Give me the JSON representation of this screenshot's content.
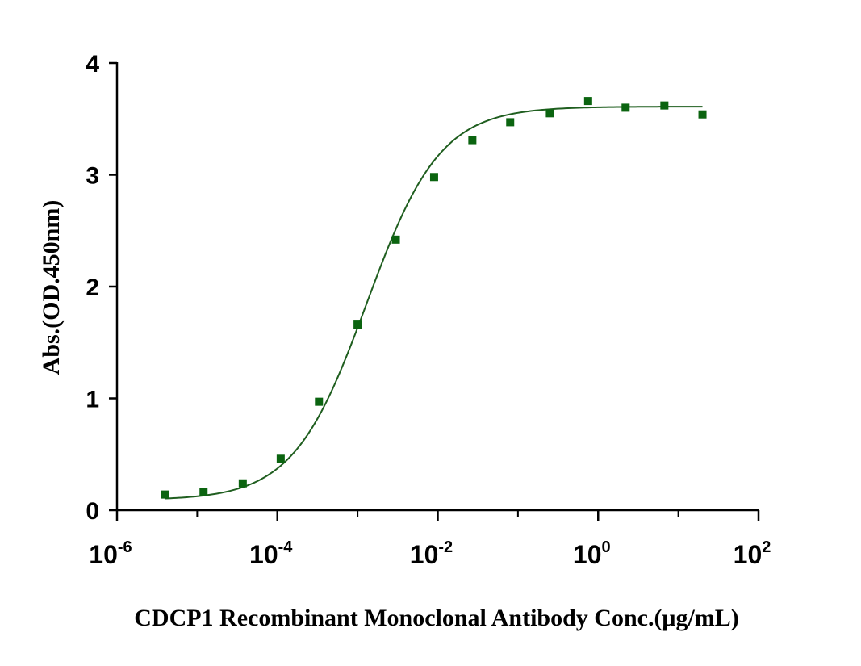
{
  "chart_data": {
    "type": "scatter",
    "title": "",
    "xlabel": "CDCP1 Recombinant Monoclonal Antibody Conc.(μg/mL)",
    "ylabel": "Abs.(OD.450nm)",
    "xscale": "log10",
    "xlim": [
      1e-06,
      100
    ],
    "ylim": [
      0,
      4
    ],
    "x_ticks": [
      {
        "base": "10",
        "exp": "-6",
        "value": 1e-06
      },
      {
        "base": "10",
        "exp": "-4",
        "value": 0.0001
      },
      {
        "base": "10",
        "exp": "-2",
        "value": 0.01
      },
      {
        "base": "10",
        "exp": "0",
        "value": 1
      },
      {
        "base": "10",
        "exp": "2",
        "value": 100
      }
    ],
    "y_ticks": [
      "0",
      "1",
      "2",
      "3",
      "4"
    ],
    "grid": false,
    "legend": "none",
    "colors": {
      "series": "#0b6410",
      "curve": "#1f5e1f",
      "axis": "#000000"
    },
    "series": [
      {
        "marker": "square",
        "x": [
          4e-06,
          1.2e-05,
          3.7e-05,
          0.00011,
          0.00033,
          0.001,
          0.003,
          0.009,
          0.027,
          0.08,
          0.25,
          0.75,
          2.2,
          6.7,
          20
        ],
        "y": [
          0.14,
          0.16,
          0.24,
          0.46,
          0.97,
          1.66,
          2.42,
          2.98,
          3.31,
          3.47,
          3.55,
          3.66,
          3.6,
          3.62,
          3.54
        ]
      }
    ],
    "fit": {
      "type": "4PL",
      "bottom": 0.09,
      "top": 3.61,
      "ec50": 0.0013,
      "hill": 0.95
    }
  }
}
